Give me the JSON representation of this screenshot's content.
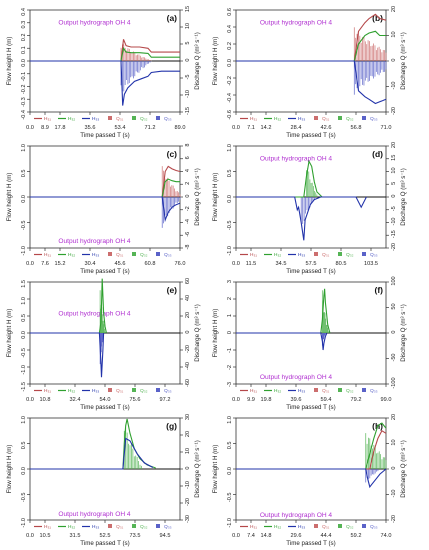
{
  "figure": {
    "subtitle": "Output hydrograph  OH  4",
    "ylabel_left": "Flow height  H  (m)",
    "ylabel_right": "Discharge  Q  (m³ s⁻¹)",
    "xlabel": "Time passed  T  (s)",
    "legend": [
      "H₃₁",
      "H₃₂",
      "H₃₃",
      "Q₃₁",
      "Q₃₂",
      "Q₃₃"
    ],
    "colors": {
      "h1": "#b5484a",
      "h2": "#2fa02f",
      "h3": "#2233aa",
      "q1": "#cc6e6e",
      "q2": "#55b455",
      "q3": "#5a62c8",
      "title": "#b030d0"
    }
  },
  "chart_data": [
    {
      "panel": "(a)",
      "type": "line+bar",
      "xticks": [
        "0.0",
        "8.9",
        "17.8",
        "35.6",
        "53.4",
        "71.2",
        "89.0"
      ],
      "xlim": [
        0,
        89
      ],
      "ylim_left": [
        -0.4,
        0.4
      ],
      "yticks_left": [
        "-0.4",
        "-0.3",
        "-0.2",
        "-0.1",
        "0.0",
        "0.1",
        "0.2",
        "0.3",
        "0.4"
      ],
      "ylim_right": [
        -15,
        15
      ],
      "yticks_right": [
        "-15",
        "-10",
        "-5",
        "0",
        "5",
        "10",
        "15"
      ],
      "onset": 54,
      "end": 89,
      "series": [
        {
          "name": "H₃₁",
          "kind": "line",
          "x": [
            54,
            55.5,
            57,
            60,
            65,
            70,
            72,
            78,
            89
          ],
          "y": [
            0,
            0.17,
            0.12,
            0.11,
            0.11,
            0.1,
            0.07,
            0.07,
            0.07
          ]
        },
        {
          "name": "H₃₂",
          "kind": "line",
          "x": [
            54,
            55.5,
            57,
            60,
            65,
            70,
            72,
            78,
            89
          ],
          "y": [
            0,
            0.1,
            0.07,
            0.065,
            0.065,
            0.06,
            0.03,
            0.03,
            0.03
          ]
        },
        {
          "name": "H₃₃",
          "kind": "line",
          "x": [
            54,
            55,
            56,
            58,
            62,
            66,
            70,
            72,
            78,
            89
          ],
          "y": [
            0,
            -0.35,
            -0.26,
            -0.21,
            -0.16,
            -0.14,
            -0.12,
            -0.09,
            -0.08,
            -0.08
          ]
        },
        {
          "name": "Q₃₁",
          "kind": "bar",
          "x": [
            54,
            72
          ],
          "y": [
            6,
            0.1
          ]
        },
        {
          "name": "Q₃₃",
          "kind": "bar",
          "x": [
            54,
            72
          ],
          "y": [
            -11,
            -0.1
          ]
        }
      ]
    },
    {
      "panel": "(b)",
      "type": "line+bar",
      "xticks": [
        "0.0",
        "7.1",
        "14.2",
        "28.4",
        "42.6",
        "56.8",
        "71.0"
      ],
      "xlim": [
        0,
        71
      ],
      "ylim_left": [
        -0.6,
        0.6
      ],
      "yticks_left": [
        "-0.6",
        "-0.4",
        "-0.2",
        "0.0",
        "0.2",
        "0.4",
        "0.6"
      ],
      "ylim_right": [
        -20,
        20
      ],
      "yticks_right": [
        "-20",
        "-10",
        "0",
        "10",
        "20"
      ],
      "onset": 56,
      "end": 71,
      "series": [
        {
          "name": "H₃₁",
          "kind": "line",
          "x": [
            56,
            58,
            61,
            63,
            66,
            68,
            71
          ],
          "y": [
            0,
            0.35,
            0.45,
            0.5,
            0.55,
            0.5,
            0.48
          ]
        },
        {
          "name": "H₃₂",
          "kind": "line",
          "x": [
            56,
            58,
            61,
            63,
            66,
            68,
            71
          ],
          "y": [
            0,
            0.2,
            0.3,
            0.33,
            0.35,
            0.3,
            0.3
          ]
        },
        {
          "name": "H₃₃",
          "kind": "line",
          "x": [
            56,
            58,
            61,
            63,
            66,
            68,
            71
          ],
          "y": [
            0,
            -0.35,
            -0.42,
            -0.45,
            -0.5,
            -0.48,
            -0.45
          ]
        },
        {
          "name": "Q₃₁",
          "kind": "bar",
          "x": [
            56,
            71
          ],
          "y": [
            14,
            4
          ]
        },
        {
          "name": "Q₃₃",
          "kind": "bar",
          "x": [
            56,
            71
          ],
          "y": [
            -14,
            -4
          ]
        }
      ]
    },
    {
      "panel": "(c)",
      "type": "line+bar",
      "xticks": [
        "0.0",
        "7.6",
        "15.2",
        "30.4",
        "45.6",
        "60.8",
        "76.0"
      ],
      "xlim": [
        0,
        76
      ],
      "ylim_left": [
        -1.0,
        1.0
      ],
      "yticks_left": [
        "-1.0",
        "-0.5",
        "0.0",
        "0.5",
        "1.0"
      ],
      "ylim_right": [
        -8,
        8
      ],
      "yticks_right": [
        "-8",
        "-6",
        "-4",
        "-2",
        "0",
        "2",
        "4",
        "6",
        "8"
      ],
      "onset": 67,
      "end": 76,
      "series": [
        {
          "name": "H₃₁",
          "kind": "line",
          "x": [
            67,
            68.5,
            70,
            72,
            74,
            76
          ],
          "y": [
            0,
            0.5,
            0.6,
            0.55,
            0.52,
            0.5
          ]
        },
        {
          "name": "H₃₂",
          "kind": "line",
          "x": [
            67,
            68.5,
            70,
            72,
            74,
            76
          ],
          "y": [
            0,
            0.3,
            0.35,
            0.32,
            0.3,
            0.3
          ]
        },
        {
          "name": "H₃₃",
          "kind": "line",
          "x": [
            67,
            68.5,
            70,
            72,
            74,
            76
          ],
          "y": [
            0,
            -0.45,
            -0.3,
            -0.2,
            -0.15,
            -0.12
          ]
        },
        {
          "name": "Q₃₁",
          "kind": "bar",
          "x": [
            67,
            76
          ],
          "y": [
            5,
            0.5
          ]
        },
        {
          "name": "Q₃₃",
          "kind": "bar",
          "x": [
            67,
            76
          ],
          "y": [
            -5,
            -0.5
          ]
        }
      ]
    },
    {
      "panel": "(d)",
      "type": "line+bar",
      "xticks": [
        "0.0",
        "11.5",
        "34.5",
        "57.5",
        "80.5",
        "103.5"
      ],
      "xlim": [
        0,
        115
      ],
      "ylim_left": [
        -1.0,
        1.0
      ],
      "yticks_left": [
        "-1.0",
        "-0.5",
        "0.0",
        "0.5",
        "1.0"
      ],
      "ylim_right": [
        -20,
        20
      ],
      "yticks_right": [
        "-20",
        "-15",
        "-10",
        "-5",
        "0",
        "5",
        "10",
        "15",
        "20"
      ],
      "onset": 45,
      "end": 115,
      "series": [
        {
          "name": "H₃₂",
          "kind": "line",
          "x": [
            52,
            54,
            56,
            58,
            60,
            62,
            66
          ],
          "y": [
            0,
            0.4,
            0.7,
            0.6,
            0.3,
            0.1,
            0
          ]
        },
        {
          "name": "H₃₃",
          "kind": "line",
          "x": [
            45,
            47,
            48,
            50,
            52,
            53,
            55,
            57,
            60,
            65,
            92,
            96,
            100
          ],
          "y": [
            0,
            -0.25,
            -0.2,
            -0.5,
            -0.85,
            -0.45,
            -0.3,
            -0.15,
            -0.05,
            0,
            0,
            -0.2,
            0
          ]
        },
        {
          "name": "Q₃₂",
          "kind": "bar",
          "x": [
            54,
            62
          ],
          "y": [
            15,
            1
          ]
        },
        {
          "name": "Q₃₃",
          "kind": "bar",
          "x": [
            50,
            60
          ],
          "y": [
            -14,
            -1
          ]
        }
      ]
    },
    {
      "panel": "(e)",
      "type": "line+bar",
      "xticks": [
        "0.0",
        "10.8",
        "32.4",
        "54.0",
        "75.6",
        "97.2"
      ],
      "xlim": [
        0,
        108
      ],
      "ylim_left": [
        -1.5,
        1.5
      ],
      "yticks_left": [
        "-1.5",
        "-1.0",
        "-0.5",
        "0.0",
        "0.5",
        "1.0",
        "1.5"
      ],
      "ylim_right": [
        -60,
        60
      ],
      "yticks_right": [
        "-60",
        "-40",
        "-20",
        "0",
        "20",
        "40",
        "60"
      ],
      "onset": 50,
      "end": 108,
      "series": [
        {
          "name": "H₃₂",
          "kind": "line",
          "x": [
            50,
            51,
            51.5,
            52,
            53,
            54,
            55
          ],
          "y": [
            0,
            0.3,
            0.8,
            1.6,
            0.6,
            0.2,
            0
          ]
        },
        {
          "name": "H₃₃",
          "kind": "line",
          "x": [
            50,
            50.5,
            51,
            51.5,
            52.5,
            53
          ],
          "y": [
            0,
            -0.4,
            -0.8,
            -1.3,
            -0.5,
            0
          ]
        },
        {
          "name": "Q₃₂",
          "kind": "bar",
          "x": [
            50.5,
            54
          ],
          "y": [
            55,
            2
          ]
        },
        {
          "name": "Q₃₃",
          "kind": "bar",
          "x": [
            50.5,
            53
          ],
          "y": [
            -40,
            -2
          ]
        }
      ]
    },
    {
      "panel": "(f)",
      "type": "line+bar",
      "xticks": [
        "0.0",
        "9.9",
        "19.8",
        "39.6",
        "59.4",
        "79.2",
        "99.0"
      ],
      "xlim": [
        0,
        99
      ],
      "ylim_left": [
        -3,
        3
      ],
      "yticks_left": [
        "-3",
        "-2",
        "-1",
        "0",
        "1",
        "2",
        "3"
      ],
      "ylim_right": [
        -100,
        100
      ],
      "yticks_right": [
        "-100",
        "-50",
        "0",
        "50",
        "100"
      ],
      "onset": 56,
      "end": 99,
      "series": [
        {
          "name": "H₃₂",
          "kind": "line",
          "x": [
            56,
            57,
            58,
            58.5,
            59,
            60.5,
            62
          ],
          "y": [
            0,
            0.8,
            2.2,
            2.6,
            1.8,
            0.5,
            0
          ]
        },
        {
          "name": "H₃₃",
          "kind": "line",
          "x": [
            56,
            57,
            57.5,
            58,
            59,
            60
          ],
          "y": [
            0,
            -0.5,
            -1.0,
            -0.6,
            -0.2,
            0
          ]
        },
        {
          "name": "Q₃₂",
          "kind": "bar",
          "x": [
            57,
            61
          ],
          "y": [
            85,
            4
          ]
        },
        {
          "name": "Q₃₃",
          "kind": "bar",
          "x": [
            57,
            59
          ],
          "y": [
            -25,
            -2
          ]
        }
      ]
    },
    {
      "panel": "(g)",
      "type": "line+bar",
      "xticks": [
        "0.0",
        "10.5",
        "31.5",
        "52.5",
        "73.5",
        "94.5"
      ],
      "xlim": [
        0,
        105
      ],
      "ylim_left": [
        -1.0,
        1.0
      ],
      "yticks_left": [
        "-1.0",
        "-0.5",
        "0.0",
        "0.5",
        "1.0"
      ],
      "ylim_right": [
        -30,
        30
      ],
      "yticks_right": [
        "-30",
        "-20",
        "-10",
        "0",
        "10",
        "20",
        "30"
      ],
      "onset": 65,
      "end": 105,
      "series": [
        {
          "name": "H₃₂",
          "kind": "line",
          "x": [
            65,
            66,
            67,
            68,
            70,
            73,
            77,
            82,
            88
          ],
          "y": [
            0,
            0.5,
            0.85,
            0.98,
            0.7,
            0.4,
            0.2,
            0.08,
            0.02
          ]
        },
        {
          "name": "H₃₃",
          "kind": "line",
          "x": [
            65,
            67,
            70,
            75,
            80,
            86
          ],
          "y": [
            0,
            0.6,
            0.55,
            0.3,
            0.12,
            0.03
          ]
        },
        {
          "name": "Q₃₂",
          "kind": "bar",
          "x": [
            66,
            78
          ],
          "y": [
            30,
            2
          ]
        }
      ]
    },
    {
      "panel": "(h)",
      "type": "line+bar",
      "xticks": [
        "0.0",
        "7.4",
        "14.8",
        "29.6",
        "44.4",
        "59.2",
        "74.0"
      ],
      "xlim": [
        0,
        74
      ],
      "ylim_left": [
        -1.0,
        1.0
      ],
      "yticks_left": [
        "-1.0",
        "-0.5",
        "0.0",
        "0.5",
        "1.0"
      ],
      "ylim_right": [
        -20,
        20
      ],
      "yticks_right": [
        "-20",
        "-10",
        "0",
        "10",
        "20"
      ],
      "onset": 64,
      "end": 74,
      "series": [
        {
          "name": "H₃₂",
          "kind": "line",
          "x": [
            64,
            66,
            68,
            70,
            72,
            74
          ],
          "y": [
            0,
            0.3,
            0.6,
            0.85,
            0.9,
            0.8
          ]
        },
        {
          "name": "H₃₁",
          "kind": "line",
          "x": [
            66,
            68,
            70,
            72,
            74
          ],
          "y": [
            0,
            0.35,
            0.6,
            0.75,
            0.7
          ]
        },
        {
          "name": "H₃₃",
          "kind": "line",
          "x": [
            64,
            65,
            66,
            67,
            69,
            71,
            74
          ],
          "y": [
            0,
            -0.2,
            -0.35,
            -0.3,
            -0.2,
            -0.1,
            0
          ]
        },
        {
          "name": "Q₃₂",
          "kind": "bar",
          "x": [
            64,
            74
          ],
          "y": [
            16,
            4
          ]
        },
        {
          "name": "Q₃₃",
          "kind": "bar",
          "x": [
            64,
            70
          ],
          "y": [
            -6,
            -1
          ]
        }
      ]
    }
  ]
}
